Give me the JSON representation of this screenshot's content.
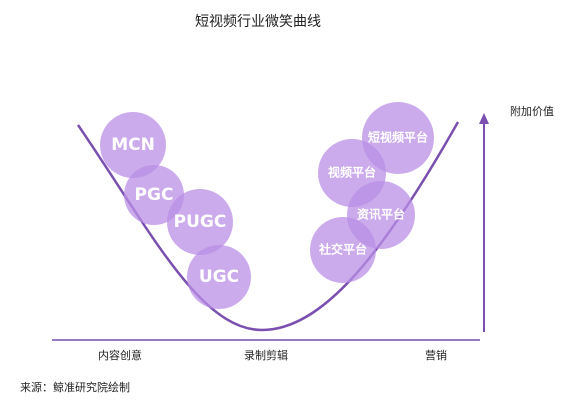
{
  "title": "短视频行业微笑曲线",
  "y_axis_label": "附加价值",
  "stages": [
    "内容创意",
    "录制剪辑",
    "营销"
  ],
  "nodes": [
    {
      "label": "MCN"
    },
    {
      "label": "PGC"
    },
    {
      "label": "PUGC"
    },
    {
      "label": "UGC"
    },
    {
      "label": "短视频平台"
    },
    {
      "label": "视频平台"
    },
    {
      "label": "资讯平台"
    },
    {
      "label": "社交平台"
    }
  ],
  "source": "来源：鲸准研究院绘制"
}
